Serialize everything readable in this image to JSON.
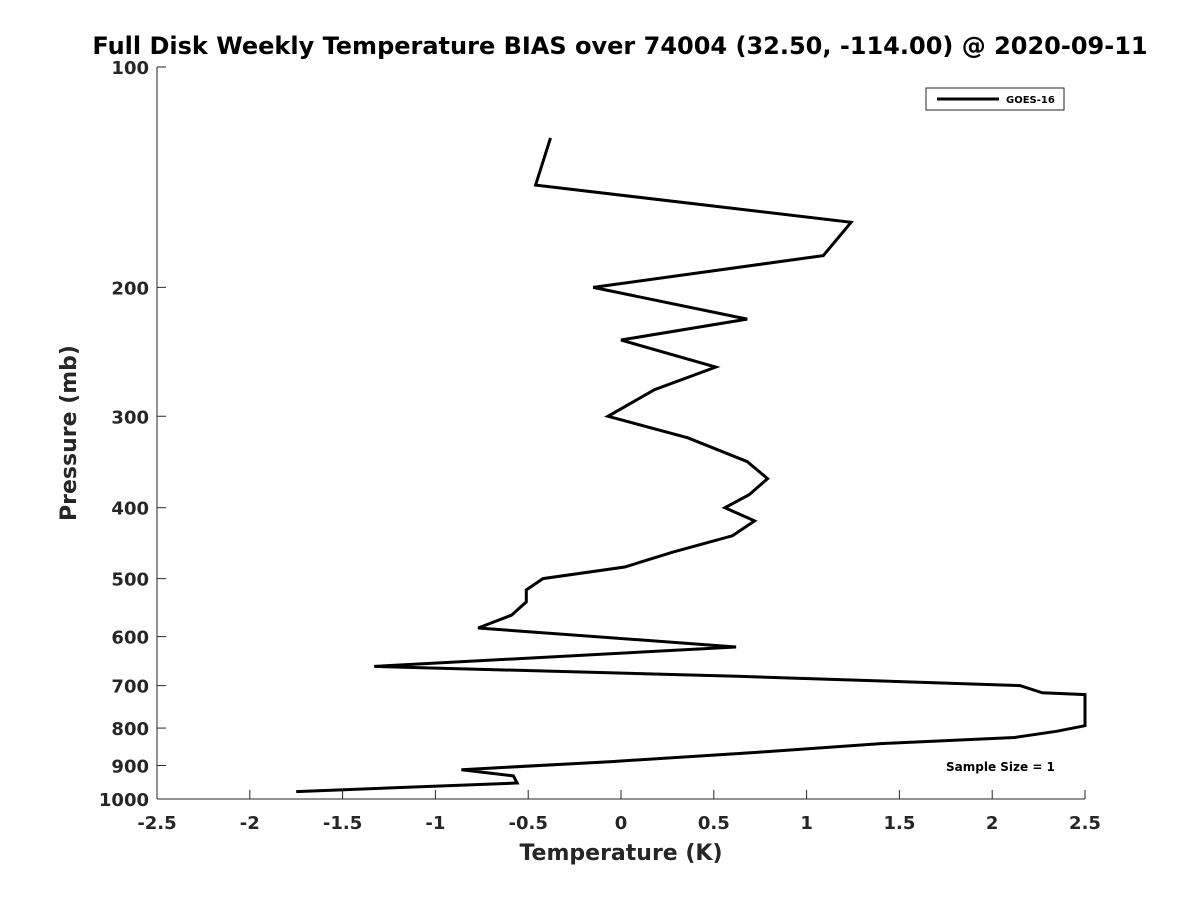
{
  "chart_data": {
    "type": "line",
    "title": "Full Disk Weekly Temperature BIAS over 74004 (32.50, -114.00) @ 2020-09-11",
    "xlabel": "Temperature (K)",
    "ylabel": "Pressure (mb)",
    "xlim": [
      -2.5,
      2.5
    ],
    "ylim": [
      100,
      1000
    ],
    "y_scale": "log",
    "y_reversed": true,
    "x_ticks": [
      -2.5,
      -2,
      -1.5,
      -1,
      -0.5,
      0,
      0.5,
      1,
      1.5,
      2,
      2.5
    ],
    "x_tick_labels": [
      "-2.5",
      "-2",
      "-1.5",
      "-1",
      "-0.5",
      "0",
      "0.5",
      "1",
      "1.5",
      "2",
      "2.5"
    ],
    "y_ticks": [
      100,
      200,
      300,
      400,
      500,
      600,
      700,
      800,
      900,
      1000
    ],
    "y_tick_labels": [
      "100",
      "200",
      "300",
      "400",
      "500",
      "600",
      "700",
      "800",
      "900",
      "1000"
    ],
    "grid": false,
    "legend_position": "top-right",
    "series": [
      {
        "name": "GOES-16",
        "color": "#000000",
        "points": [
          {
            "x": -0.38,
            "p": 125
          },
          {
            "x": -0.46,
            "p": 145
          },
          {
            "x": 1.24,
            "p": 163
          },
          {
            "x": 1.09,
            "p": 181
          },
          {
            "x": -0.15,
            "p": 200
          },
          {
            "x": 0.68,
            "p": 221
          },
          {
            "x": 0.0,
            "p": 236
          },
          {
            "x": 0.51,
            "p": 257
          },
          {
            "x": 0.18,
            "p": 276
          },
          {
            "x": -0.07,
            "p": 300
          },
          {
            "x": 0.36,
            "p": 321
          },
          {
            "x": 0.68,
            "p": 346
          },
          {
            "x": 0.79,
            "p": 365
          },
          {
            "x": 0.69,
            "p": 384
          },
          {
            "x": 0.56,
            "p": 400
          },
          {
            "x": 0.72,
            "p": 417
          },
          {
            "x": 0.6,
            "p": 437
          },
          {
            "x": 0.28,
            "p": 460
          },
          {
            "x": 0.02,
            "p": 482
          },
          {
            "x": -0.42,
            "p": 500
          },
          {
            "x": -0.51,
            "p": 518
          },
          {
            "x": -0.51,
            "p": 538
          },
          {
            "x": -0.59,
            "p": 561
          },
          {
            "x": -0.77,
            "p": 584
          },
          {
            "x": 0.62,
            "p": 620
          },
          {
            "x": -1.33,
            "p": 659
          },
          {
            "x": 0.65,
            "p": 680
          },
          {
            "x": 2.15,
            "p": 700
          },
          {
            "x": 2.27,
            "p": 716
          },
          {
            "x": 2.5,
            "p": 720
          },
          {
            "x": 2.5,
            "p": 794
          },
          {
            "x": 2.35,
            "p": 808
          },
          {
            "x": 2.12,
            "p": 824
          },
          {
            "x": 1.4,
            "p": 840
          },
          {
            "x": 0.72,
            "p": 864
          },
          {
            "x": -0.05,
            "p": 889
          },
          {
            "x": -0.86,
            "p": 912
          },
          {
            "x": -0.58,
            "p": 930
          },
          {
            "x": -0.56,
            "p": 951
          },
          {
            "x": -1.75,
            "p": 977
          }
        ]
      }
    ],
    "annotation": "Sample Size = 1"
  }
}
